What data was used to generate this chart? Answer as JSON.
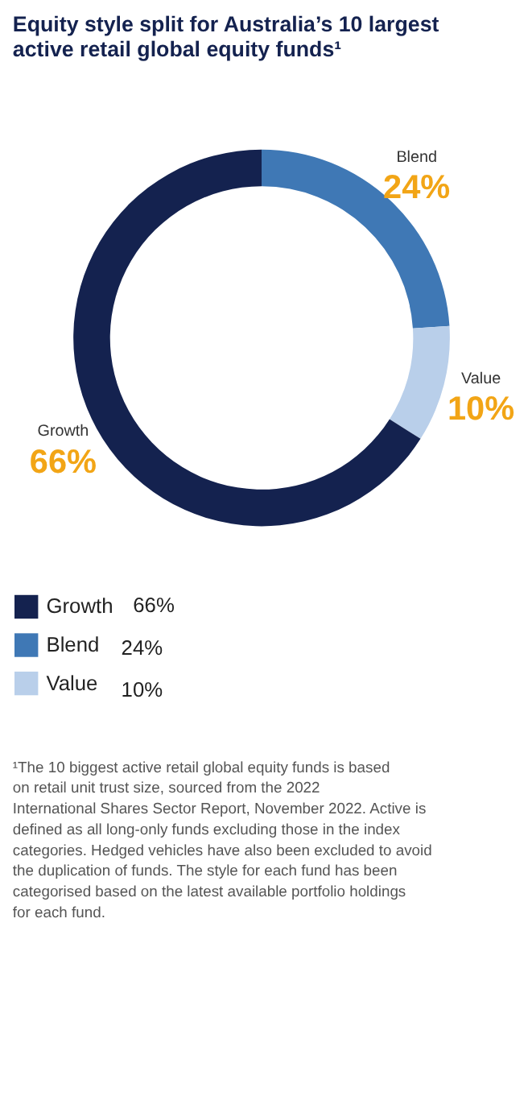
{
  "chart_data": {
    "type": "donut",
    "title": "Equity style split for Australia’s 10 largest active retail global equity funds¹",
    "categories": [
      "Growth",
      "Blend",
      "Value"
    ],
    "values": [
      66,
      24,
      10
    ],
    "value_labels": [
      "66%",
      "24%",
      "10%"
    ],
    "colors": [
      "#14224f",
      "#3f78b5",
      "#b9cfea"
    ],
    "legend": "bottom left",
    "annotations": [
      "¹The 10 biggest active retail global equity funds is based on retail unit trust size, sourced from the 2022 International Shares Sector Report, November 2022. Active is defined as all long-only funds excluding those in the index categories. Hedged vehicles have also been excluded to avoid the duplication of funds. The style for each fund has been categorised based on the latest available portfolio holdings for each fund."
    ]
  }
}
